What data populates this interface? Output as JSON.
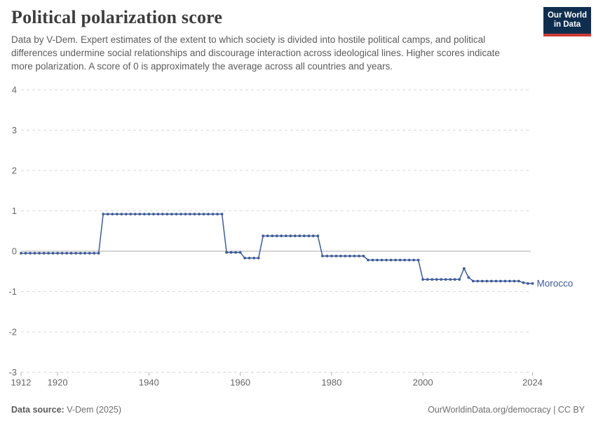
{
  "header": {
    "title": "Political polarization score",
    "subtitle": "Data by V-Dem. Expert estimates of the extent to which society is divided into hostile political camps, and political differences undermine social relationships and discourage interaction across ideological lines. Higher scores indicate more polarization. A score of 0 is approximately the average across all countries and years.",
    "logo_line1": "Our World",
    "logo_line2": "in Data",
    "logo_bg": "#0f2e4f",
    "logo_accent": "#cf3a31"
  },
  "chart_data": {
    "type": "line",
    "title": "Political polarization score",
    "xlabel": "",
    "ylabel": "",
    "xlim": [
      1912,
      2024
    ],
    "ylim": [
      -3,
      4
    ],
    "grid": "dashed-horizontal",
    "legend_position": "end-of-line-label",
    "x_ticks": [
      1912,
      1920,
      1940,
      1960,
      1980,
      2000,
      2024
    ],
    "y_ticks": [
      -3,
      -2,
      -1,
      0,
      1,
      2,
      3,
      4
    ],
    "series": [
      {
        "name": "Morocco",
        "color": "#3e5c99",
        "marker": "dot-every-year",
        "value_runs": [
          {
            "from": 1912,
            "to": 1929,
            "value": -0.05
          },
          {
            "from": 1930,
            "to": 1956,
            "value": 0.92
          },
          {
            "from": 1957,
            "to": 1960,
            "value": -0.03
          },
          {
            "from": 1961,
            "to": 1964,
            "value": -0.17
          },
          {
            "from": 1965,
            "to": 1977,
            "value": 0.38
          },
          {
            "from": 1978,
            "to": 1987,
            "value": -0.12
          },
          {
            "from": 1988,
            "to": 1999,
            "value": -0.22
          },
          {
            "from": 2000,
            "to": 2008,
            "value": -0.7
          },
          {
            "from": 2009,
            "to": 2009,
            "value": -0.43
          },
          {
            "from": 2010,
            "to": 2010,
            "value": -0.65
          },
          {
            "from": 2011,
            "to": 2021,
            "value": -0.74
          },
          {
            "from": 2022,
            "to": 2022,
            "value": -0.78
          },
          {
            "from": 2023,
            "to": 2024,
            "value": -0.8
          }
        ]
      }
    ],
    "colors": {
      "grid": "#d9d9d9",
      "zero_line": "#a8a8a8",
      "tick": "#b0b0b0",
      "axis_label": "#666666"
    }
  },
  "footer": {
    "source_label": "Data source:",
    "source_value": " V-Dem (2025)",
    "credit": "OurWorldinData.org/democracy | CC BY"
  }
}
